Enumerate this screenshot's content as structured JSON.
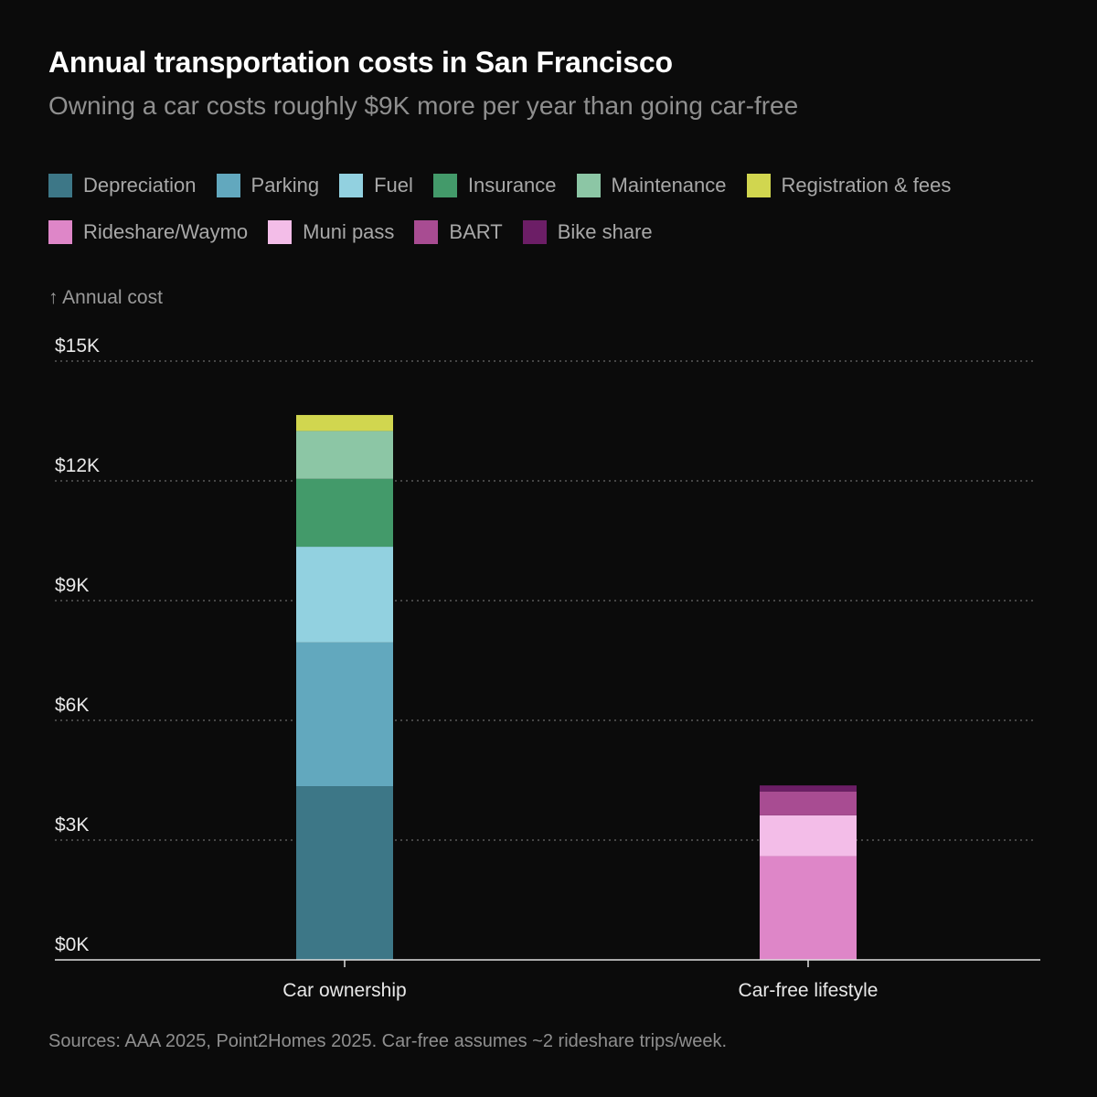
{
  "title": "Annual transportation costs in San Francisco",
  "subtitle": "Owning a car costs roughly $9K more per year than going car-free",
  "axis_title": "↑ Annual cost",
  "source": "Sources: AAA 2025, Point2Homes 2025. Car-free assumes ~2 rideshare trips/week.",
  "legend": [
    {
      "label": "Depreciation",
      "color": "#3d7787"
    },
    {
      "label": "Parking",
      "color": "#62a8be"
    },
    {
      "label": "Fuel",
      "color": "#92d1e0"
    },
    {
      "label": "Insurance",
      "color": "#439a6a"
    },
    {
      "label": "Maintenance",
      "color": "#8cc6a5"
    },
    {
      "label": "Registration & fees",
      "color": "#d1d64f"
    },
    {
      "label": "Rideshare/Waymo",
      "color": "#de86c8"
    },
    {
      "label": "Muni pass",
      "color": "#f3bde8"
    },
    {
      "label": "BART",
      "color": "#a84c92"
    },
    {
      "label": "Bike share",
      "color": "#6c1e66"
    }
  ],
  "chart_data": {
    "type": "bar",
    "stacked": true,
    "title": "Annual transportation costs in San Francisco",
    "ylabel": "Annual cost",
    "ylim": [
      0,
      15000
    ],
    "yticks": [
      0,
      3000,
      6000,
      9000,
      12000,
      15000
    ],
    "ytick_labels": [
      "$0K",
      "$3K",
      "$6K",
      "$9K",
      "$12K",
      "$15K"
    ],
    "categories": [
      "Car ownership",
      "Car-free lifestyle"
    ],
    "series": [
      {
        "name": "Depreciation",
        "color": "#3d7787",
        "values": [
          4350,
          0
        ]
      },
      {
        "name": "Parking",
        "color": "#62a8be",
        "values": [
          3600,
          0
        ]
      },
      {
        "name": "Fuel",
        "color": "#92d1e0",
        "values": [
          2400,
          0
        ]
      },
      {
        "name": "Insurance",
        "color": "#439a6a",
        "values": [
          1700,
          0
        ]
      },
      {
        "name": "Maintenance",
        "color": "#8cc6a5",
        "values": [
          1200,
          0
        ]
      },
      {
        "name": "Registration & fees",
        "color": "#d1d64f",
        "values": [
          400,
          0
        ]
      },
      {
        "name": "Rideshare/Waymo",
        "color": "#de86c8",
        "values": [
          0,
          2600
        ]
      },
      {
        "name": "Muni pass",
        "color": "#f3bde8",
        "values": [
          0,
          1020
        ]
      },
      {
        "name": "BART",
        "color": "#a84c92",
        "values": [
          0,
          600
        ]
      },
      {
        "name": "Bike share",
        "color": "#6c1e66",
        "values": [
          0,
          150
        ]
      }
    ],
    "grid": true,
    "legend_position": "top-left"
  }
}
